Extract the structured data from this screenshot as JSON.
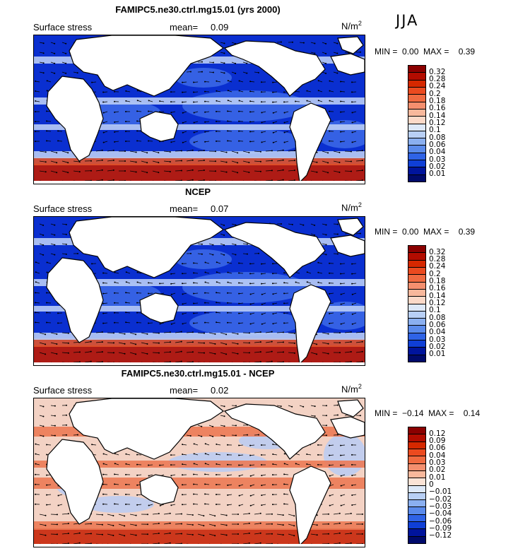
{
  "season": "JJA",
  "panels": [
    {
      "title": "FAMIPC5.ne30.ctrl.mg15.01 (yrs 2000)",
      "subtitle": "Surface stress",
      "mean_label": "mean=",
      "mean": "0.09",
      "unit": "N/m",
      "unit_exp": "2",
      "min_label": "MIN =",
      "min": "0.00",
      "max_label": "MAX =",
      "max": "0.39",
      "field": "mean",
      "colorbar": {
        "labels": [
          "0.32",
          "0.28",
          "0.24",
          "0.2",
          "0.18",
          "0.16",
          "0.14",
          "0.12",
          "0.1",
          "0.08",
          "0.06",
          "0.04",
          "0.03",
          "0.02",
          "0.01"
        ],
        "colors": [
          "#8b0000",
          "#b30c00",
          "#d62800",
          "#eb4a1f",
          "#f06a40",
          "#f48f6e",
          "#f8b89c",
          "#fbd9c8",
          "#dde8f8",
          "#b8cff5",
          "#8aaff0",
          "#5a8aeb",
          "#2f63e6",
          "#0f3fd6",
          "#00149c",
          "#000a6b"
        ]
      },
      "map_colors": {
        "low": "#0a2fd0",
        "mid": "#3d6ae8",
        "calm": "#b9cdf5",
        "high": "#e2542a",
        "peak": "#c01a00"
      }
    },
    {
      "title": "NCEP",
      "subtitle": "Surface stress",
      "mean_label": "mean=",
      "mean": "0.07",
      "unit": "N/m",
      "unit_exp": "2",
      "min_label": "MIN =",
      "min": "0.00",
      "max_label": "MAX =",
      "max": "0.39",
      "field": "mean",
      "colorbar": {
        "labels": [
          "0.32",
          "0.28",
          "0.24",
          "0.2",
          "0.18",
          "0.16",
          "0.14",
          "0.12",
          "0.1",
          "0.08",
          "0.06",
          "0.04",
          "0.03",
          "0.02",
          "0.01"
        ],
        "colors": [
          "#8b0000",
          "#b30c00",
          "#d62800",
          "#eb4a1f",
          "#f06a40",
          "#f48f6e",
          "#f8b89c",
          "#fbd9c8",
          "#dde8f8",
          "#b8cff5",
          "#8aaff0",
          "#5a8aeb",
          "#2f63e6",
          "#0f3fd6",
          "#00149c",
          "#000a6b"
        ]
      },
      "map_colors": {
        "low": "#0a2fd0",
        "mid": "#3d6ae8",
        "calm": "#b9cdf5",
        "high": "#e2542a",
        "peak": "#c01a00"
      }
    },
    {
      "title": "FAMIPC5.ne30.ctrl.mg15.01 - NCEP",
      "subtitle": "Surface stress",
      "mean_label": "mean=",
      "mean": "0.02",
      "unit": "N/m",
      "unit_exp": "2",
      "min_label": "MIN =",
      "min": "−0.14",
      "max_label": "MAX =",
      "max": "0.14",
      "field": "diff",
      "colorbar": {
        "labels": [
          "0.12",
          "0.09",
          "0.06",
          "0.04",
          "0.03",
          "0.02",
          "0.01",
          "0",
          "−0.01",
          "−0.02",
          "−0.03",
          "−0.04",
          "−0.06",
          "−0.09",
          "−0.12"
        ],
        "colors": [
          "#8b0000",
          "#b30c00",
          "#d62800",
          "#eb4a1f",
          "#f06a40",
          "#f48f6e",
          "#f8b89c",
          "#fbe3d6",
          "#dde8f8",
          "#b8cff5",
          "#8aaff0",
          "#5a8aeb",
          "#2f63e6",
          "#0f3fd6",
          "#00149c",
          "#000a6b"
        ]
      },
      "map_colors": {
        "low": "#3d6ae8",
        "mid": "#b9cdf5",
        "calm": "#f3d2c4",
        "high": "#ec7a55",
        "peak": "#c8260a"
      }
    }
  ]
}
